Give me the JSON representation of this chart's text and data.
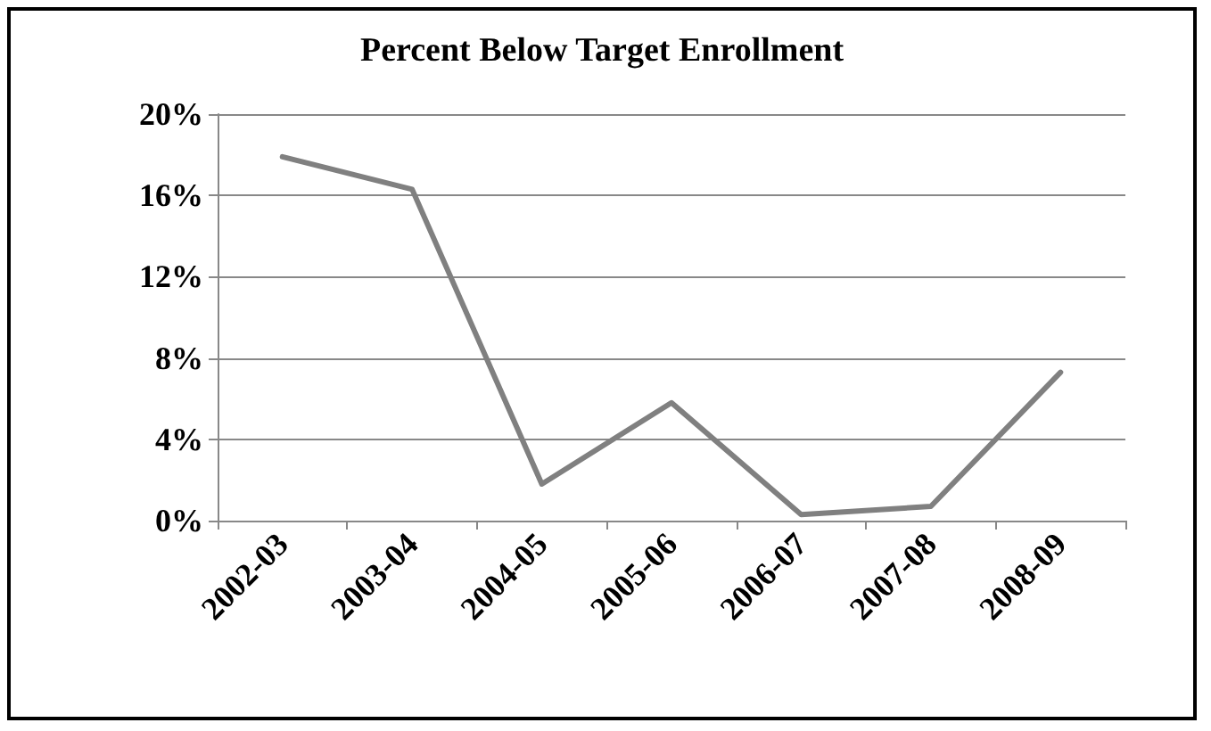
{
  "chart_data": {
    "type": "line",
    "title": "Percent Below Target Enrollment",
    "categories": [
      "2002-03",
      "2003-04",
      "2004-05",
      "2005-06",
      "2006-07",
      "2007-08",
      "2008-09"
    ],
    "series": [
      {
        "color": "#808080",
        "values": [
          17.9,
          16.3,
          1.8,
          5.8,
          0.3,
          0.7,
          7.3
        ]
      }
    ],
    "ylim": [
      0,
      20
    ],
    "yticks": [
      {
        "value": 0,
        "label": "0%"
      },
      {
        "value": 4,
        "label": "4%"
      },
      {
        "value": 8,
        "label": "8%"
      },
      {
        "value": 12,
        "label": "12%"
      },
      {
        "value": 16,
        "label": "16%"
      },
      {
        "value": 20,
        "label": "20%"
      }
    ],
    "grid": "y",
    "marker": "none",
    "line_style": "solid"
  }
}
